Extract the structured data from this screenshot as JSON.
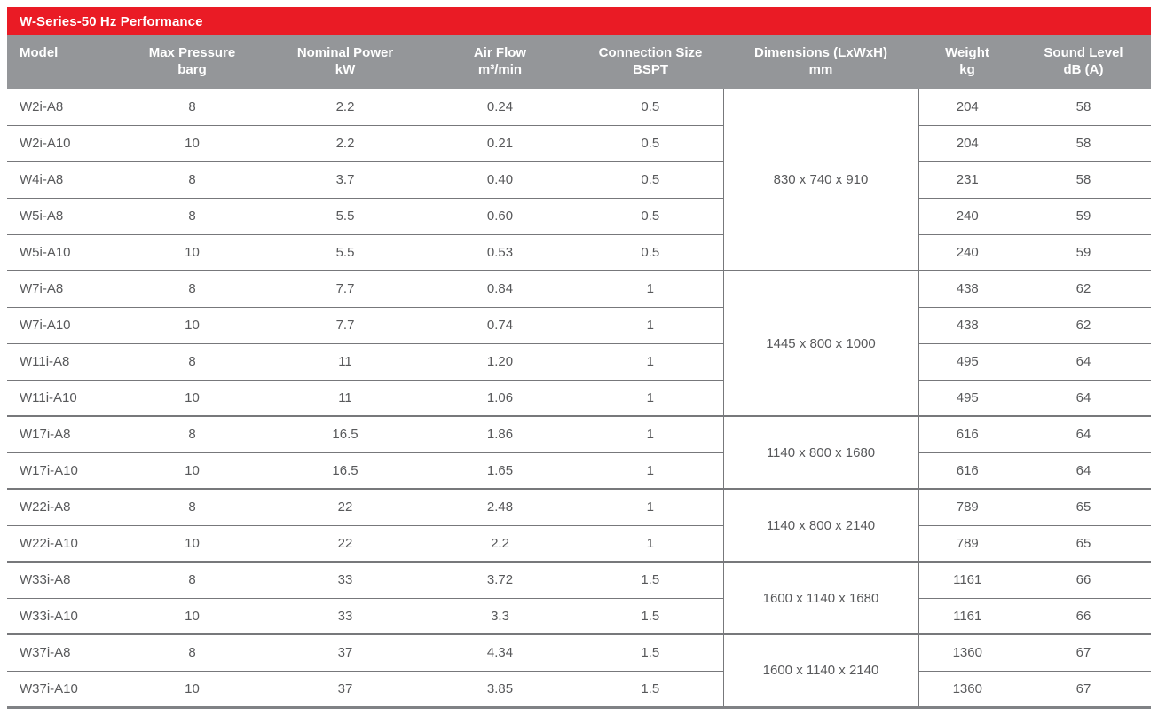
{
  "title": "W-Series-50 Hz Performance",
  "colors": {
    "title_bar_red": "#ea1b25",
    "header_gray": "#949699",
    "cell_text_gray": "#58595b",
    "grid_line_gray": "#77787b",
    "bottom_line_gray": "#808285",
    "header_text": "#ffffff"
  },
  "table": {
    "columns": [
      {
        "key": "model",
        "label": "Model",
        "unit": ""
      },
      {
        "key": "max_pressure",
        "label": "Max Pressure",
        "unit": "barg"
      },
      {
        "key": "nominal_power",
        "label": "Nominal Power",
        "unit": "kW"
      },
      {
        "key": "air_flow",
        "label": "Air Flow",
        "unit": "m³/min"
      },
      {
        "key": "connection_size",
        "label": "Connection Size",
        "unit": "BSPT"
      },
      {
        "key": "dimensions",
        "label": "Dimensions (LxWxH)",
        "unit": "mm"
      },
      {
        "key": "weight",
        "label": "Weight",
        "unit": "kg"
      },
      {
        "key": "sound_level",
        "label": "Sound Level",
        "unit": "dB (A)"
      }
    ],
    "groups": [
      {
        "dimensions": "830 x 740 x 910",
        "rows": [
          {
            "model": "W2i-A8",
            "max_pressure": "8",
            "nominal_power": "2.2",
            "air_flow": "0.24",
            "connection_size": "0.5",
            "weight": "204",
            "sound_level": "58"
          },
          {
            "model": "W2i-A10",
            "max_pressure": "10",
            "nominal_power": "2.2",
            "air_flow": "0.21",
            "connection_size": "0.5",
            "weight": "204",
            "sound_level": "58"
          },
          {
            "model": "W4i-A8",
            "max_pressure": "8",
            "nominal_power": "3.7",
            "air_flow": "0.40",
            "connection_size": "0.5",
            "weight": "231",
            "sound_level": "58"
          },
          {
            "model": "W5i-A8",
            "max_pressure": "8",
            "nominal_power": "5.5",
            "air_flow": "0.60",
            "connection_size": "0.5",
            "weight": "240",
            "sound_level": "59"
          },
          {
            "model": "W5i-A10",
            "max_pressure": "10",
            "nominal_power": "5.5",
            "air_flow": "0.53",
            "connection_size": "0.5",
            "weight": "240",
            "sound_level": "59"
          }
        ]
      },
      {
        "dimensions": "1445 x 800 x 1000",
        "rows": [
          {
            "model": "W7i-A8",
            "max_pressure": "8",
            "nominal_power": "7.7",
            "air_flow": "0.84",
            "connection_size": "1",
            "weight": "438",
            "sound_level": "62"
          },
          {
            "model": "W7i-A10",
            "max_pressure": "10",
            "nominal_power": "7.7",
            "air_flow": "0.74",
            "connection_size": "1",
            "weight": "438",
            "sound_level": "62"
          },
          {
            "model": "W11i-A8",
            "max_pressure": "8",
            "nominal_power": "11",
            "air_flow": "1.20",
            "connection_size": "1",
            "weight": "495",
            "sound_level": "64"
          },
          {
            "model": "W11i-A10",
            "max_pressure": "10",
            "nominal_power": "11",
            "air_flow": "1.06",
            "connection_size": "1",
            "weight": "495",
            "sound_level": "64"
          }
        ]
      },
      {
        "dimensions": "1140 x 800 x 1680",
        "rows": [
          {
            "model": "W17i-A8",
            "max_pressure": "8",
            "nominal_power": "16.5",
            "air_flow": "1.86",
            "connection_size": "1",
            "weight": "616",
            "sound_level": "64"
          },
          {
            "model": "W17i-A10",
            "max_pressure": "10",
            "nominal_power": "16.5",
            "air_flow": "1.65",
            "connection_size": "1",
            "weight": "616",
            "sound_level": "64"
          }
        ]
      },
      {
        "dimensions": "1140 x 800 x 2140",
        "rows": [
          {
            "model": "W22i-A8",
            "max_pressure": "8",
            "nominal_power": "22",
            "air_flow": "2.48",
            "connection_size": "1",
            "weight": "789",
            "sound_level": "65"
          },
          {
            "model": "W22i-A10",
            "max_pressure": "10",
            "nominal_power": "22",
            "air_flow": "2.2",
            "connection_size": "1",
            "weight": "789",
            "sound_level": "65"
          }
        ]
      },
      {
        "dimensions": "1600 x 1140 x 1680",
        "rows": [
          {
            "model": "W33i-A8",
            "max_pressure": "8",
            "nominal_power": "33",
            "air_flow": "3.72",
            "connection_size": "1.5",
            "weight": "1161",
            "sound_level": "66"
          },
          {
            "model": "W33i-A10",
            "max_pressure": "10",
            "nominal_power": "33",
            "air_flow": "3.3",
            "connection_size": "1.5",
            "weight": "1161",
            "sound_level": "66"
          }
        ]
      },
      {
        "dimensions": "1600 x 1140 x 2140",
        "rows": [
          {
            "model": "W37i-A8",
            "max_pressure": "8",
            "nominal_power": "37",
            "air_flow": "4.34",
            "connection_size": "1.5",
            "weight": "1360",
            "sound_level": "67"
          },
          {
            "model": "W37i-A10",
            "max_pressure": "10",
            "nominal_power": "37",
            "air_flow": "3.85",
            "connection_size": "1.5",
            "weight": "1360",
            "sound_level": "67"
          }
        ]
      }
    ]
  }
}
